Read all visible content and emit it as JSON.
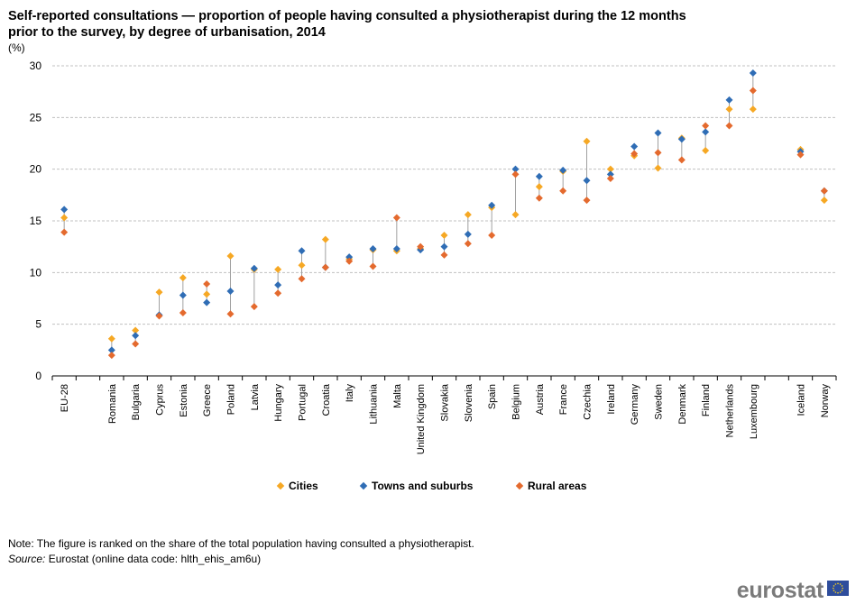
{
  "title": "Self-reported consultations — proportion of people having consulted a physiotherapist during the 12 months prior to the survey, by degree of urbanisation, 2014",
  "unit": "(%)",
  "legend": {
    "cities": "Cities",
    "towns": "Towns and suburbs",
    "rural": "Rural areas"
  },
  "note": "Note: The figure is ranked on the share of the total population having consulted a physiotherapist.",
  "source_label": "Source:",
  "source_text": " Eurostat (online data code: hlth_ehis_am6u)",
  "brand": "eurostat",
  "colors": {
    "cities": "#f6a824",
    "towns": "#2f6db5",
    "rural": "#e46a2e",
    "grid": "#c0c0c0",
    "range_line": "#a0a0a0"
  },
  "chart_data": {
    "type": "scatter",
    "ylim": [
      0,
      30
    ],
    "yticks": [
      0,
      5,
      10,
      15,
      20,
      25,
      30
    ],
    "grid": true,
    "legend_position": "bottom",
    "categories": [
      "EU-28",
      "",
      "Romania",
      "Bulgaria",
      "Cyprus",
      "Estonia",
      "Greece",
      "Poland",
      "Latvia",
      "Hungary",
      "Portugal",
      "Croatia",
      "Italy",
      "Lithuania",
      "Malta",
      "United Kingdom",
      "Slovakia",
      "Slovenia",
      "Spain",
      "Belgium",
      "Austria",
      "France",
      "Czechia",
      "Ireland",
      "Germany",
      "Sweden",
      "Denmark",
      "Finland",
      "Netherlands",
      "Luxembourg",
      "",
      "Iceland",
      "Norway"
    ],
    "series": [
      {
        "name": "Cities",
        "values": [
          15.3,
          null,
          3.6,
          4.4,
          8.1,
          9.5,
          7.9,
          11.6,
          10.3,
          10.3,
          10.7,
          13.2,
          11.3,
          12.2,
          12.1,
          12.3,
          13.6,
          15.6,
          16.3,
          15.6,
          18.3,
          19.8,
          22.7,
          20.0,
          21.3,
          20.1,
          23.0,
          21.8,
          25.8,
          25.8,
          null,
          21.9,
          17.0
        ]
      },
      {
        "name": "Towns and suburbs",
        "values": [
          16.1,
          null,
          2.5,
          3.9,
          5.9,
          7.8,
          7.1,
          8.2,
          10.4,
          8.8,
          12.1,
          10.5,
          11.5,
          12.3,
          12.3,
          12.2,
          12.5,
          13.7,
          16.5,
          20.0,
          19.3,
          19.9,
          18.9,
          19.5,
          22.2,
          23.5,
          22.9,
          23.6,
          26.7,
          29.3,
          null,
          21.7,
          17.9
        ]
      },
      {
        "name": "Rural areas",
        "values": [
          13.9,
          null,
          2.0,
          3.1,
          5.8,
          6.1,
          8.9,
          6.0,
          6.7,
          8.0,
          9.4,
          10.5,
          11.1,
          10.6,
          15.3,
          12.5,
          11.7,
          12.8,
          13.6,
          19.5,
          17.2,
          17.9,
          17.0,
          19.1,
          21.5,
          21.6,
          20.9,
          24.2,
          24.2,
          27.6,
          null,
          21.4,
          17.9
        ]
      }
    ]
  }
}
